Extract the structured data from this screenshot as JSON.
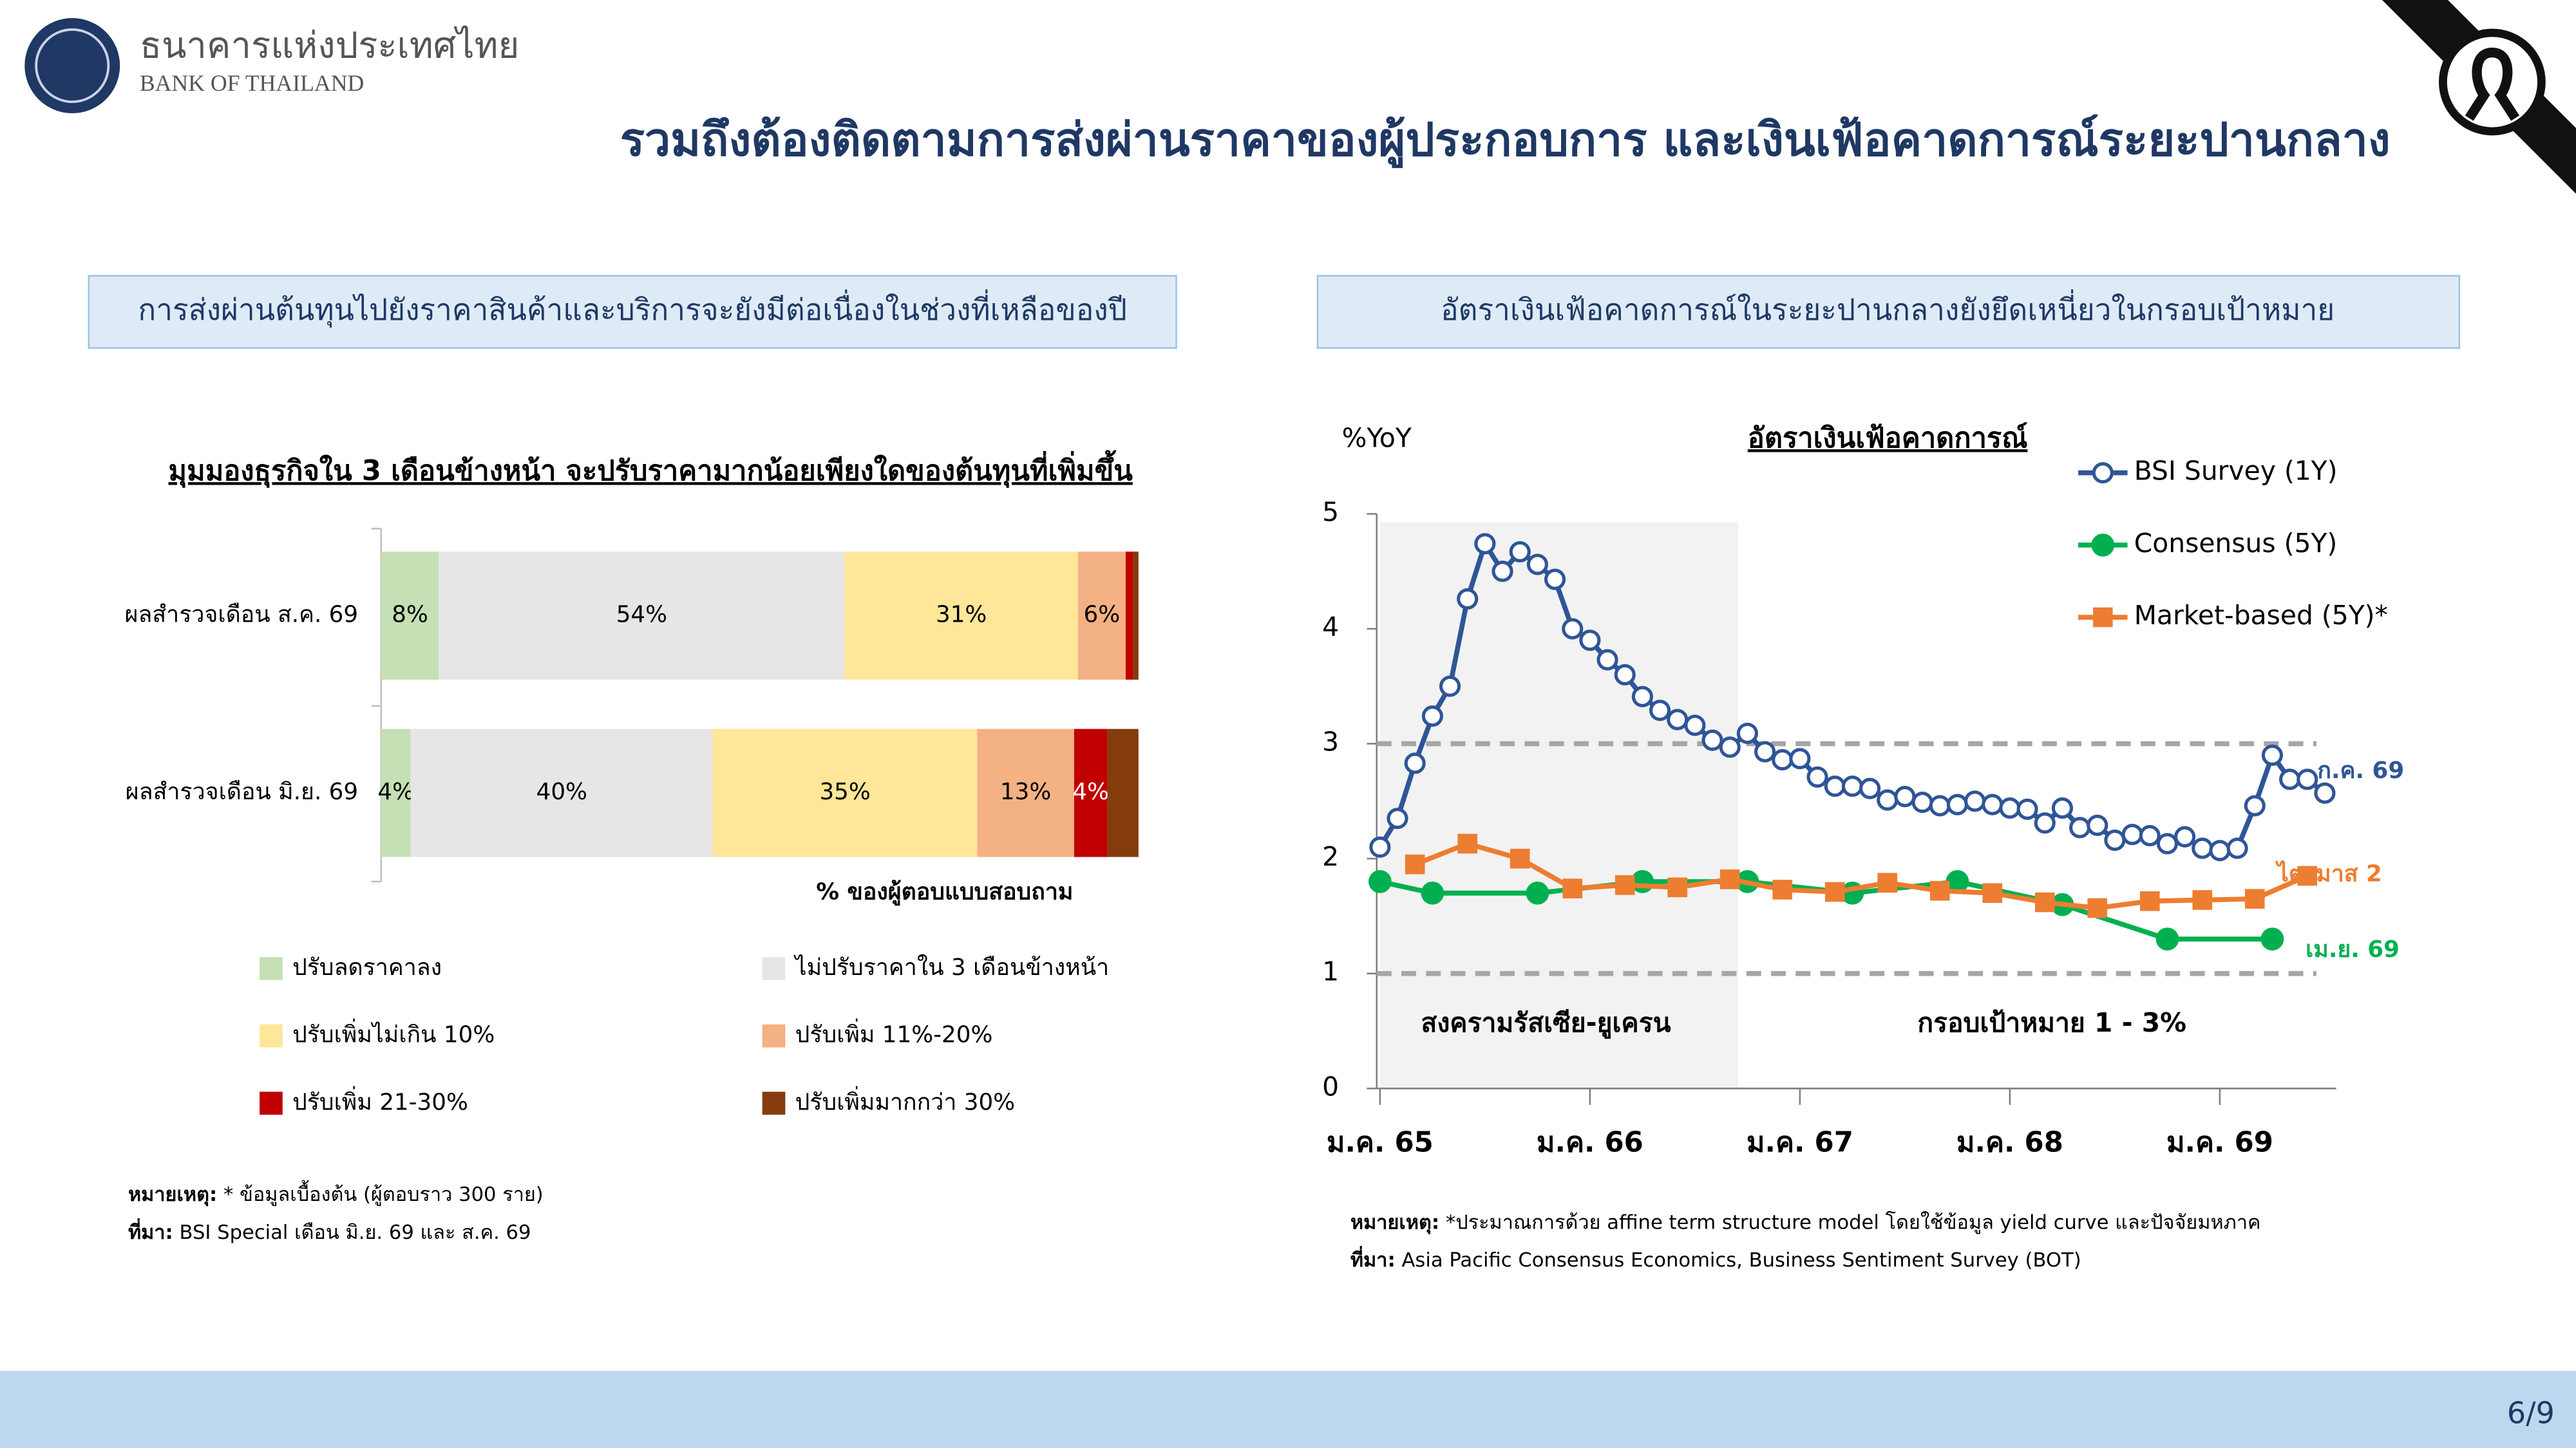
{
  "header": {
    "org_th": "ธนาคารแห่งประเทศไทย",
    "org_en": "BANK OF THAILAND",
    "title": "รวมถึงต้องติดตามการส่งผ่านราคาของผู้ประกอบการ และเงินเฟ้อคาดการณ์ระยะปานกลาง"
  },
  "panels": [
    "การส่งผ่านต้นทุนไปยังราคาสินค้าและบริการจะยังมีต่อเนื่องในช่วงที่เหลือของปี",
    "อัตราเงินเฟ้อคาดการณ์ในระยะปานกลางยังยึดเหนี่ยวในกรอบเป้าหมาย"
  ],
  "chart_data": [
    {
      "type": "barh",
      "title": "มุมมองธุรกิจใน 3 เดือนข้างหน้า จะปรับราคามากน้อยเพียงใดของต้นทุนที่เพิ่มขึ้น",
      "categories": [
        "ผลสำรวจเดือน ส.ค. 69",
        "ผลสำรวจเดือน มิ.ย. 69"
      ],
      "xlabel": "% ของผู้ตอบแบบสอบถาม",
      "xlim": [
        0,
        100
      ],
      "series": [
        {
          "name": "ปรับลดราคาลง",
          "color": "#c5e0b4",
          "values": [
            7.6,
            3.9
          ],
          "value_labels": [
            "8%",
            "4%"
          ]
        },
        {
          "name": "ไม่ปรับราคาใน 3 เดือนข้างหน้า",
          "color": "#e7e6e6",
          "values": [
            53.6,
            39.9
          ],
          "value_labels": [
            "54%",
            "40%"
          ]
        },
        {
          "name": "ปรับเพิ่มไม่เกิน 10%",
          "color": "#ffe699",
          "values": [
            30.8,
            34.9
          ],
          "value_labels": [
            "31%",
            "35%"
          ]
        },
        {
          "name": "ปรับเพิ่ม 11%-20%",
          "color": "#f4b183",
          "values": [
            6.3,
            12.8
          ],
          "value_labels": [
            "6%",
            "13%"
          ]
        },
        {
          "name": "ปรับเพิ่ม 21-30%",
          "color": "#c00000",
          "values": [
            1.0,
            4.4
          ],
          "value_labels": [
            null,
            "4%"
          ],
          "label_color": "#ffffff"
        },
        {
          "name": "ปรับเพิ่มมากกว่า 30%",
          "color": "#843c0c",
          "values": [
            0.7,
            4.1
          ],
          "value_labels": [
            null,
            null
          ]
        }
      ]
    },
    {
      "type": "line",
      "title": "อัตราเงินเฟ้อคาดการณ์",
      "ylabel": "%YoY",
      "categories": [
        "ม.ค. 65",
        null,
        null,
        null,
        null,
        null,
        null,
        null,
        null,
        null,
        null,
        null,
        "ม.ค. 66",
        null,
        null,
        null,
        null,
        null,
        null,
        null,
        null,
        null,
        null,
        null,
        "ม.ค. 67",
        null,
        null,
        null,
        null,
        null,
        null,
        null,
        null,
        null,
        null,
        null,
        "ม.ค. 68",
        null,
        null,
        null,
        null,
        null,
        null,
        null,
        null,
        null,
        null,
        null,
        "ม.ค. 69",
        null,
        null,
        null,
        null,
        null,
        null
      ],
      "ylim": [
        0,
        5
      ],
      "yticks": [
        0,
        1,
        2,
        3,
        4,
        5
      ],
      "target": [
        1,
        3
      ],
      "target_label": "กรอบเป้าหมาย 1 - 3%",
      "shade_label": "สงครามรัสเซีย-ยูเครน",
      "series": [
        {
          "name": "BSI Survey (1Y)",
          "color": "#2f5597",
          "marker": "circle-open",
          "end_label": "ก.ค. 69",
          "values": [
            2.1,
            2.35,
            2.83,
            3.24,
            3.5,
            4.26,
            4.74,
            4.5,
            4.67,
            4.56,
            4.43,
            4.0,
            3.9,
            3.73,
            3.6,
            3.41,
            3.29,
            3.21,
            3.16,
            3.03,
            2.97,
            3.09,
            2.93,
            2.86,
            2.87,
            2.71,
            2.63,
            2.63,
            2.61,
            2.51,
            2.54,
            2.49,
            2.46,
            2.47,
            2.5,
            2.47,
            2.44,
            2.43,
            2.31,
            2.44,
            2.27,
            2.29,
            2.16,
            2.21,
            2.2,
            2.13,
            2.19,
            2.09,
            2.07,
            2.09,
            2.46,
            2.9,
            2.69,
            2.69,
            2.57
          ]
        },
        {
          "name": "Consensus (5Y)",
          "color": "#00b050",
          "marker": "circle",
          "end_label": "เม.ย. 69",
          "values": [
            1.8,
            null,
            null,
            1.7,
            null,
            null,
            null,
            null,
            null,
            1.7,
            null,
            null,
            null,
            null,
            null,
            1.8,
            null,
            null,
            null,
            null,
            null,
            1.8,
            null,
            null,
            null,
            null,
            null,
            1.7,
            null,
            null,
            null,
            null,
            null,
            1.8,
            null,
            null,
            null,
            null,
            null,
            1.6,
            null,
            null,
            null,
            null,
            null,
            1.3,
            null,
            null,
            null,
            null,
            null,
            1.3,
            null,
            null,
            null
          ]
        },
        {
          "name": "Market-based (5Y)*",
          "color": "#ed7d31",
          "marker": "square",
          "end_label": "ไตรมาส 2",
          "values": [
            null,
            null,
            1.95,
            null,
            null,
            2.13,
            null,
            null,
            2.0,
            null,
            null,
            1.74,
            null,
            null,
            1.77,
            null,
            null,
            1.75,
            null,
            null,
            1.82,
            null,
            null,
            1.73,
            null,
            null,
            1.71,
            null,
            null,
            1.79,
            null,
            null,
            1.72,
            null,
            null,
            1.7,
            null,
            null,
            1.62,
            null,
            null,
            1.57,
            null,
            null,
            1.63,
            null,
            null,
            1.64,
            null,
            null,
            1.65,
            null,
            null,
            1.85,
            null
          ]
        }
      ]
    }
  ],
  "notes": [
    [
      {
        "label": "หมายเหตุ:",
        "text": " * ข้อมูลเบื้องต้น (ผู้ตอบราว 300 ราย)"
      },
      {
        "label": "ที่มา:",
        "text": " BSI Special เดือน มิ.ย. 69 และ ส.ค. 69"
      }
    ],
    [
      {
        "label": "หมายเหตุ:",
        "text": " *ประมาณการด้วย affine term structure model โดยใช้ข้อมูล yield curve และปัจจัยมหภาค"
      },
      {
        "label": "ที่มา:",
        "text": " Asia Pacific Consensus Economics, Business Sentiment Survey (BOT)"
      }
    ]
  ],
  "footer": {
    "page": "6/9"
  }
}
